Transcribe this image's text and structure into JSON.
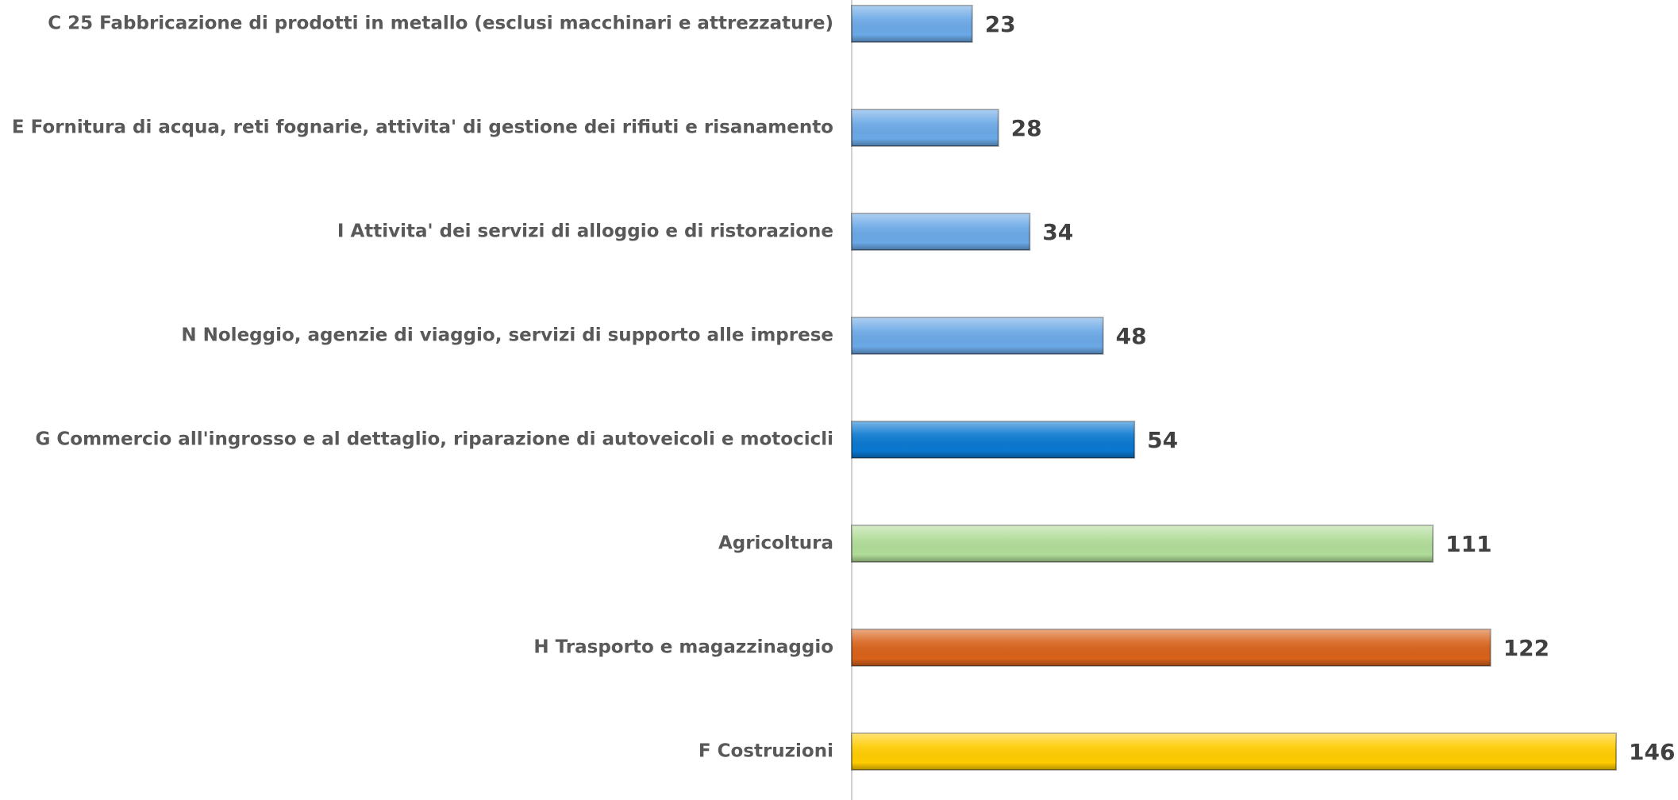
{
  "chart_data": {
    "type": "bar",
    "orientation": "horizontal",
    "categories": [
      "C 25 Fabbricazione di prodotti in metallo (esclusi macchinari e attrezzature)",
      "E Fornitura di acqua, reti fognarie, attivita' di gestione dei rifiuti e risanamento",
      "I Attivita' dei servizi di alloggio e di ristorazione",
      "N Noleggio, agenzie di viaggio, servizi di supporto alle imprese",
      "G Commercio all'ingrosso e al dettaglio, riparazione di autoveicoli e motocicli",
      "Agricoltura",
      "H Trasporto e magazzinaggio",
      "F Costruzioni"
    ],
    "values": [
      23,
      28,
      34,
      48,
      54,
      111,
      122,
      146
    ],
    "colors": [
      "#6aa8e6",
      "#6aa8e6",
      "#6aa8e6",
      "#6aa8e6",
      "#0a78d0",
      "#b0dc98",
      "#d8621a",
      "#ffcc00"
    ]
  }
}
